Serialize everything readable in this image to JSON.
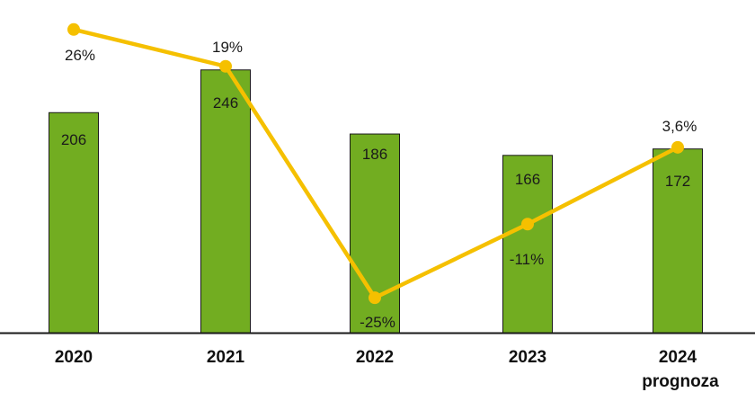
{
  "chart_data": {
    "type": "bar",
    "categories": [
      "2020",
      "2021",
      "2022",
      "2023",
      "2024"
    ],
    "category_sublabels": [
      "",
      "",
      "",
      "",
      "prognoza"
    ],
    "ylim": [
      0,
      300
    ],
    "series": [
      {
        "kind": "bar",
        "values": [
          206,
          246,
          186,
          166,
          172
        ],
        "value_labels": [
          "206",
          "246",
          "186",
          "166",
          "172"
        ],
        "color": "#72ad21"
      },
      {
        "kind": "line",
        "values": [
          26,
          19,
          -25,
          -11,
          3.6
        ],
        "value_labels": [
          "26%",
          "19%",
          "-25%",
          "-11%",
          "3,6%"
        ],
        "color": "#f5c000"
      }
    ],
    "line_ylim": [
      -30,
      30
    ],
    "grid": false,
    "legend": "none"
  }
}
